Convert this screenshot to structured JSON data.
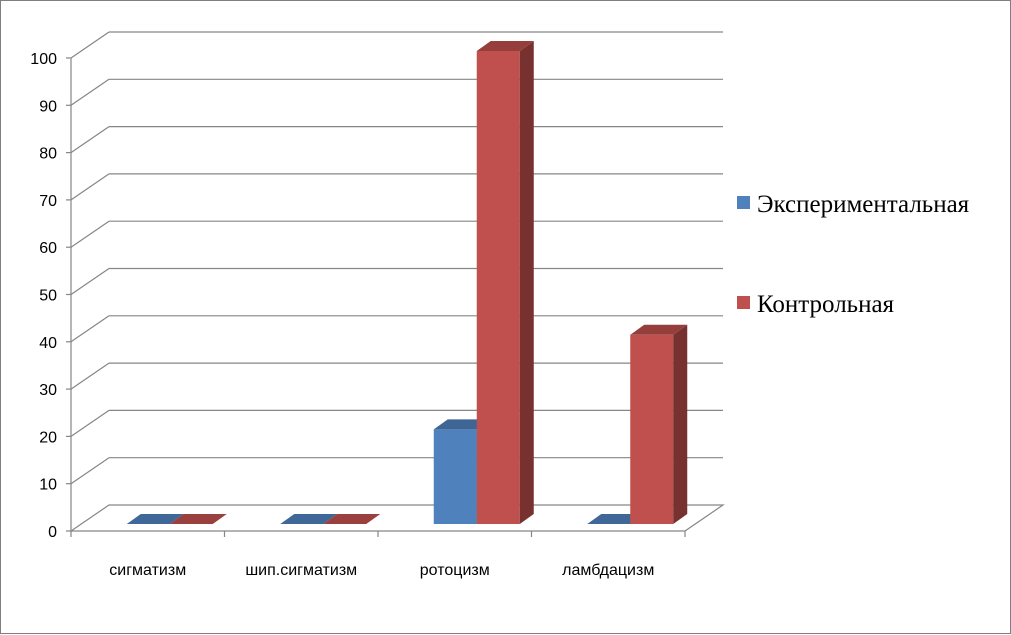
{
  "chart_data": {
    "type": "bar",
    "title": "",
    "xlabel": "",
    "ylabel": "",
    "categories": [
      "сигматизм",
      "шип.сигматизм",
      "ротоцизм",
      "ламбдацизм"
    ],
    "series": [
      {
        "name": "Экспериментальная",
        "values": [
          0,
          0,
          20,
          0
        ],
        "color": "#4F81BD"
      },
      {
        "name": "Контрольная",
        "values": [
          0,
          0,
          100,
          40
        ],
        "color": "#C0504D"
      }
    ],
    "ylim": [
      0,
      100
    ],
    "yticks": [
      0,
      10,
      20,
      30,
      40,
      50,
      60,
      70,
      80,
      90,
      100
    ],
    "grid": true,
    "style": "3d-clustered-column",
    "legend_position": "right"
  }
}
